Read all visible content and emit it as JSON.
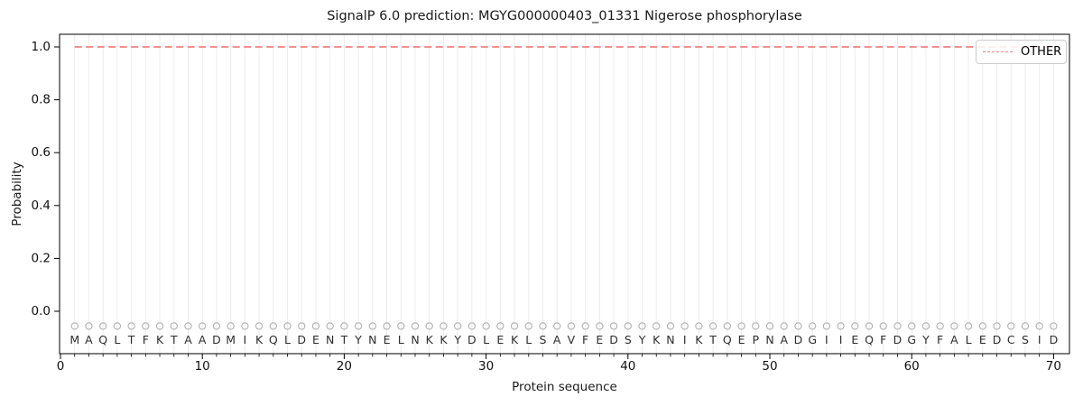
{
  "figure": {
    "title": "SignalP 6.0 prediction: MGYG000000403_01331 Nigerose phosphorylase"
  },
  "chart_data": {
    "type": "line",
    "title": "SignalP 6.0 prediction: MGYG000000403_01331 Nigerose phosphorylase",
    "xlabel": "Protein sequence",
    "ylabel": "Probability",
    "xlim": [
      -0.5,
      71.5
    ],
    "ylim": [
      -0.16,
      1.05
    ],
    "x_ticks": [
      0,
      10,
      20,
      30,
      40,
      50,
      60,
      70
    ],
    "y_ticks": [
      "0.0",
      "0.2",
      "0.4",
      "0.6",
      "0.8",
      "1.0"
    ],
    "grid": {
      "vertical_per_residue": true,
      "color": "#ececec"
    },
    "legend": {
      "position": "upper-right",
      "entries": [
        {
          "label": "OTHER",
          "color": "#f08080",
          "linestyle": "dashed"
        }
      ]
    },
    "series": [
      {
        "name": "OTHER",
        "color": "#f08080",
        "linestyle": "dashed",
        "x": [
          1,
          2,
          3,
          4,
          5,
          6,
          7,
          8,
          9,
          10,
          11,
          12,
          13,
          14,
          15,
          16,
          17,
          18,
          19,
          20,
          21,
          22,
          23,
          24,
          25,
          26,
          27,
          28,
          29,
          30,
          31,
          32,
          33,
          34,
          35,
          36,
          37,
          38,
          39,
          40,
          41,
          42,
          43,
          44,
          45,
          46,
          47,
          48,
          49,
          50,
          51,
          52,
          53,
          54,
          55,
          56,
          57,
          58,
          59,
          60,
          61,
          62,
          63,
          64,
          65,
          66,
          67,
          68,
          69,
          70
        ],
        "values": [
          1.0,
          1.0,
          1.0,
          1.0,
          1.0,
          1.0,
          1.0,
          1.0,
          1.0,
          1.0,
          1.0,
          1.0,
          1.0,
          1.0,
          1.0,
          1.0,
          1.0,
          1.0,
          1.0,
          1.0,
          1.0,
          1.0,
          1.0,
          1.0,
          1.0,
          1.0,
          1.0,
          1.0,
          1.0,
          1.0,
          1.0,
          1.0,
          1.0,
          1.0,
          1.0,
          1.0,
          1.0,
          1.0,
          1.0,
          1.0,
          1.0,
          1.0,
          1.0,
          1.0,
          1.0,
          1.0,
          1.0,
          1.0,
          1.0,
          1.0,
          1.0,
          1.0,
          1.0,
          1.0,
          1.0,
          1.0,
          1.0,
          1.0,
          1.0,
          1.0,
          1.0,
          1.0,
          1.0,
          1.0,
          1.0,
          1.0,
          1.0,
          1.0,
          1.0,
          1.0
        ]
      }
    ],
    "sequence": {
      "residues": "MAQLTFKTAADMIKQLDENTYNELNKKYDLEKLSAVFEDSYKNIKTQEPNADGIIEQFDGYFALEDCSID",
      "marker": {
        "shape": "open-circle",
        "y": -0.056,
        "color": "#b0b0b0"
      },
      "letter_y": -0.111,
      "letter_color": "#2e2e2e"
    },
    "colors": {
      "axis": "#000000",
      "grid": "#ececec",
      "other_line": "#f08080",
      "background": "#ffffff"
    }
  }
}
